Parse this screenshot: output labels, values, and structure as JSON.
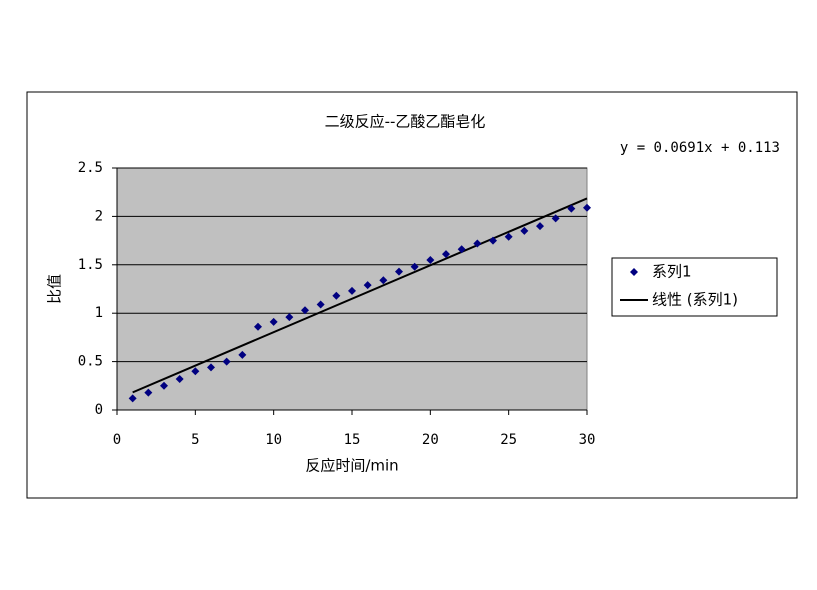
{
  "chart_data": {
    "type": "scatter",
    "title": "二级反应--乙酸乙酯皂化",
    "x_label": "反应时间/min",
    "y_label": "比值",
    "annotation": "y = 0.0691x + 0.113",
    "x": [
      1,
      2,
      3,
      4,
      5,
      6,
      7,
      8,
      9,
      10,
      11,
      12,
      13,
      14,
      15,
      16,
      17,
      18,
      19,
      20,
      21,
      22,
      23,
      24,
      25,
      26,
      27,
      28,
      29,
      30
    ],
    "series": [
      {
        "name": "系列1",
        "color": "#000080",
        "values": [
          0.12,
          0.18,
          0.25,
          0.32,
          0.4,
          0.44,
          0.5,
          0.57,
          0.86,
          0.91,
          0.96,
          1.03,
          1.09,
          1.18,
          1.23,
          1.29,
          1.34,
          1.43,
          1.48,
          1.55,
          1.61,
          1.66,
          1.72,
          1.75,
          1.79,
          1.85,
          1.9,
          1.98,
          2.08,
          2.09
        ]
      }
    ],
    "trendline": {
      "name": "线性 (系列1)",
      "slope": 0.0691,
      "intercept": 0.113,
      "color": "#000000"
    },
    "xlim": [
      0,
      30
    ],
    "xticks": [
      0,
      5,
      10,
      15,
      20,
      25,
      30
    ],
    "ylim": [
      0,
      2.5
    ],
    "yticks": [
      0,
      0.5,
      1,
      1.5,
      2,
      2.5
    ],
    "grid": true,
    "legend": "right"
  }
}
